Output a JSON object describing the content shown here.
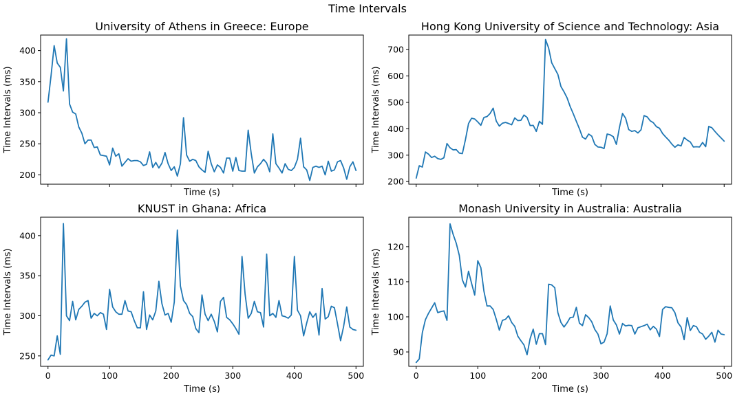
{
  "figure": {
    "title": "Time Intervals"
  },
  "chart_data": [
    {
      "type": "line",
      "title": "University of Athens in Greece: Europe",
      "xlabel": "Time (s)",
      "ylabel": "Time Intervals (ms)",
      "xlim": [
        -12,
        512
      ],
      "ylim": [
        185,
        425
      ],
      "xticks": [
        0,
        100,
        200,
        300,
        400,
        500
      ],
      "xtick_labels_visible": false,
      "yticks": [
        200,
        250,
        300,
        350,
        400
      ],
      "color": "#1f77b4",
      "series": [
        {
          "x": [
            0,
            5,
            10,
            15,
            20,
            25,
            30,
            35,
            40,
            45,
            50,
            55,
            60,
            65,
            70,
            75,
            80,
            85,
            90,
            95,
            100,
            105,
            110,
            115,
            120,
            125,
            130,
            135,
            140,
            145,
            150,
            155,
            160,
            165,
            170,
            175,
            180,
            185,
            190,
            195,
            200,
            205,
            210,
            215,
            220,
            225,
            230,
            235,
            240,
            245,
            250,
            255,
            260,
            265,
            270,
            275,
            280,
            285,
            290,
            295,
            300,
            305,
            310,
            315,
            320,
            325,
            330,
            335,
            340,
            345,
            350,
            355,
            360,
            365,
            370,
            375,
            380,
            385,
            390,
            395,
            400,
            405,
            410,
            415,
            420,
            425,
            430,
            435,
            440,
            445,
            450,
            455,
            460,
            465,
            470,
            475,
            480,
            485,
            490,
            495,
            500
          ],
          "y": [
            317,
            360,
            408,
            380,
            373,
            335,
            419,
            314,
            301,
            298,
            277,
            267,
            250,
            256,
            256,
            244,
            245,
            232,
            231,
            230,
            216,
            243,
            230,
            234,
            214,
            220,
            226,
            222,
            223,
            223,
            221,
            215,
            217,
            237,
            212,
            220,
            211,
            219,
            236,
            218,
            207,
            213,
            198,
            218,
            292,
            232,
            222,
            225,
            223,
            213,
            208,
            204,
            238,
            218,
            205,
            216,
            212,
            203,
            227,
            227,
            206,
            228,
            207,
            206,
            206,
            272,
            234,
            203,
            213,
            218,
            225,
            219,
            205,
            266,
            218,
            211,
            203,
            218,
            209,
            207,
            212,
            225,
            259,
            213,
            208,
            191,
            212,
            214,
            212,
            214,
            200,
            222,
            206,
            208,
            221,
            223,
            211,
            193,
            213,
            221,
            207
          ]
        }
      ]
    },
    {
      "type": "line",
      "title": "Hong Kong University of Science and Technology: Asia",
      "xlabel": "Time (s)",
      "ylabel": "Time Intervals (ms)",
      "xlim": [
        -12,
        512
      ],
      "ylim": [
        190,
        755
      ],
      "xticks": [
        0,
        100,
        200,
        300,
        400,
        500
      ],
      "xtick_labels_visible": false,
      "yticks": [
        200,
        300,
        400,
        500,
        600,
        700
      ],
      "color": "#1f77b4",
      "series": [
        {
          "x": [
            0,
            5,
            10,
            15,
            20,
            25,
            30,
            35,
            40,
            45,
            50,
            55,
            60,
            65,
            70,
            75,
            80,
            85,
            90,
            95,
            100,
            105,
            110,
            115,
            120,
            125,
            130,
            135,
            140,
            145,
            150,
            155,
            160,
            165,
            170,
            175,
            180,
            185,
            190,
            195,
            200,
            205,
            210,
            215,
            220,
            225,
            230,
            235,
            240,
            245,
            250,
            255,
            260,
            265,
            270,
            275,
            280,
            285,
            290,
            295,
            300,
            305,
            310,
            315,
            320,
            325,
            330,
            335,
            340,
            345,
            350,
            355,
            360,
            365,
            370,
            375,
            380,
            385,
            390,
            395,
            400,
            405,
            410,
            415,
            420,
            425,
            430,
            435,
            440,
            445,
            450,
            455,
            460,
            465,
            470,
            475,
            480,
            485,
            490,
            495,
            500
          ],
          "y": [
            213,
            260,
            255,
            312,
            304,
            291,
            296,
            287,
            284,
            290,
            344,
            328,
            320,
            321,
            308,
            306,
            359,
            420,
            440,
            437,
            426,
            413,
            443,
            446,
            458,
            478,
            429,
            410,
            421,
            424,
            420,
            415,
            441,
            431,
            432,
            452,
            443,
            412,
            413,
            390,
            428,
            417,
            738,
            706,
            650,
            628,
            606,
            560,
            540,
            517,
            484,
            457,
            428,
            400,
            368,
            361,
            380,
            372,
            341,
            331,
            330,
            325,
            380,
            377,
            370,
            341,
            405,
            458,
            440,
            397,
            390,
            393,
            384,
            396,
            450,
            445,
            430,
            423,
            408,
            402,
            382,
            369,
            357,
            342,
            330,
            339,
            335,
            367,
            357,
            350,
            331,
            332,
            331,
            348,
            332,
            409,
            404,
            390,
            377,
            365,
            353
          ]
        }
      ]
    },
    {
      "type": "line",
      "title": "KNUST in Ghana: Africa",
      "xlabel": "Time (s)",
      "ylabel": "Time Intervals (ms)",
      "xlim": [
        -12,
        512
      ],
      "ylim": [
        237,
        423
      ],
      "xticks": [
        0,
        100,
        200,
        300,
        400,
        500
      ],
      "xtick_labels_visible": true,
      "yticks": [
        250,
        300,
        350,
        400
      ],
      "color": "#1f77b4",
      "series": [
        {
          "x": [
            0,
            5,
            10,
            15,
            20,
            25,
            30,
            35,
            40,
            45,
            50,
            55,
            60,
            65,
            70,
            75,
            80,
            85,
            90,
            95,
            100,
            105,
            110,
            115,
            120,
            125,
            130,
            135,
            140,
            145,
            150,
            155,
            160,
            165,
            170,
            175,
            180,
            185,
            190,
            195,
            200,
            205,
            210,
            215,
            220,
            225,
            230,
            235,
            240,
            245,
            250,
            255,
            260,
            265,
            270,
            275,
            280,
            285,
            290,
            295,
            300,
            305,
            310,
            315,
            320,
            325,
            330,
            335,
            340,
            345,
            350,
            355,
            360,
            365,
            370,
            375,
            380,
            385,
            390,
            395,
            400,
            405,
            410,
            415,
            420,
            425,
            430,
            435,
            440,
            445,
            450,
            455,
            460,
            465,
            470,
            475,
            480,
            485,
            490,
            495,
            500
          ],
          "y": [
            245,
            251,
            250,
            275,
            252,
            415,
            300,
            294,
            318,
            295,
            308,
            312,
            317,
            319,
            297,
            303,
            300,
            304,
            302,
            283,
            333,
            311,
            305,
            302,
            302,
            319,
            306,
            305,
            294,
            285,
            285,
            330,
            283,
            301,
            295,
            306,
            343,
            315,
            301,
            303,
            292,
            317,
            407,
            337,
            319,
            314,
            303,
            299,
            284,
            279,
            326,
            302,
            294,
            302,
            293,
            280,
            318,
            323,
            298,
            295,
            290,
            284,
            277,
            374,
            327,
            297,
            303,
            318,
            305,
            304,
            286,
            377,
            300,
            303,
            298,
            319,
            300,
            299,
            297,
            301,
            374,
            307,
            300,
            275,
            291,
            305,
            298,
            303,
            276,
            334,
            296,
            299,
            312,
            310,
            290,
            269,
            287,
            311,
            286,
            283,
            282
          ]
        }
      ]
    },
    {
      "type": "line",
      "title": "Monash University in Australia: Australia",
      "xlabel": "Time (s)",
      "ylabel": "Time Intervals (ms)",
      "xlim": [
        -12,
        512
      ],
      "ylim": [
        85.9,
        128.4
      ],
      "xticks": [
        0,
        100,
        200,
        300,
        400,
        500
      ],
      "xtick_labels_visible": true,
      "yticks": [
        90,
        100,
        110,
        120
      ],
      "color": "#1f77b4",
      "series": [
        {
          "x": [
            0,
            5,
            10,
            15,
            20,
            25,
            30,
            35,
            40,
            45,
            50,
            55,
            60,
            65,
            70,
            75,
            80,
            85,
            90,
            95,
            100,
            105,
            110,
            115,
            120,
            125,
            130,
            135,
            140,
            145,
            150,
            155,
            160,
            165,
            170,
            175,
            180,
            185,
            190,
            195,
            200,
            205,
            210,
            215,
            220,
            225,
            230,
            235,
            240,
            245,
            250,
            255,
            260,
            265,
            270,
            275,
            280,
            285,
            290,
            295,
            300,
            305,
            310,
            315,
            320,
            325,
            330,
            335,
            340,
            345,
            350,
            355,
            360,
            365,
            370,
            375,
            380,
            385,
            390,
            395,
            400,
            405,
            410,
            415,
            420,
            425,
            430,
            435,
            440,
            445,
            450,
            455,
            460,
            465,
            470,
            475,
            480,
            485,
            490,
            495,
            500
          ],
          "y": [
            87,
            88,
            95.5,
            99.2,
            101,
            102.5,
            104,
            101.2,
            101.5,
            101.7,
            99,
            126.5,
            123.5,
            121,
            117.5,
            110.5,
            108.5,
            113,
            109.5,
            106.2,
            116,
            114,
            107.3,
            103.1,
            103.1,
            102.1,
            99.3,
            96.2,
            99,
            99.3,
            100.3,
            98.4,
            97.3,
            94.5,
            93.2,
            92,
            89.2,
            93.8,
            96.5,
            92.2,
            95.2,
            95.2,
            92.1,
            109.3,
            109.1,
            108.3,
            101.2,
            98.4,
            97.1,
            98.3,
            99.8,
            99.9,
            102.7,
            98.2,
            97.5,
            100.6,
            99.8,
            98.6,
            96.4,
            95.1,
            92.3,
            92.8,
            95.2,
            103.1,
            99.1,
            97.7,
            95.1,
            98.1,
            97.4,
            97.6,
            97.5,
            95.1,
            96.9,
            97.2,
            97.5,
            97.9,
            96.3,
            97.3,
            96.5,
            94.4,
            102.1,
            102.9,
            102.7,
            102.6,
            101.2,
            98.3,
            97.1,
            93.5,
            99.8,
            96.1,
            97.5,
            97.2,
            95.6,
            95.1,
            93.6,
            94.5,
            95.6,
            92.8,
            96.2,
            95.1,
            94.9
          ]
        }
      ]
    }
  ]
}
